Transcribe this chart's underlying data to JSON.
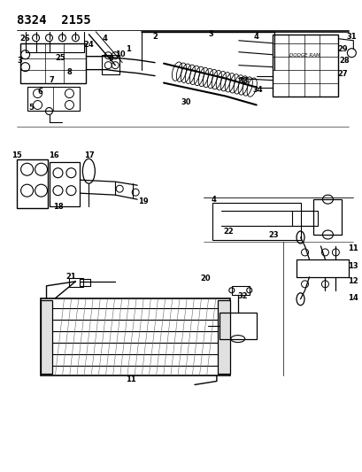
{
  "title": "8324  2155",
  "bg_color": "#ffffff",
  "line_color": "#000000",
  "gray_color": "#888888",
  "fig_width": 4.1,
  "fig_height": 5.33,
  "dpi": 100
}
